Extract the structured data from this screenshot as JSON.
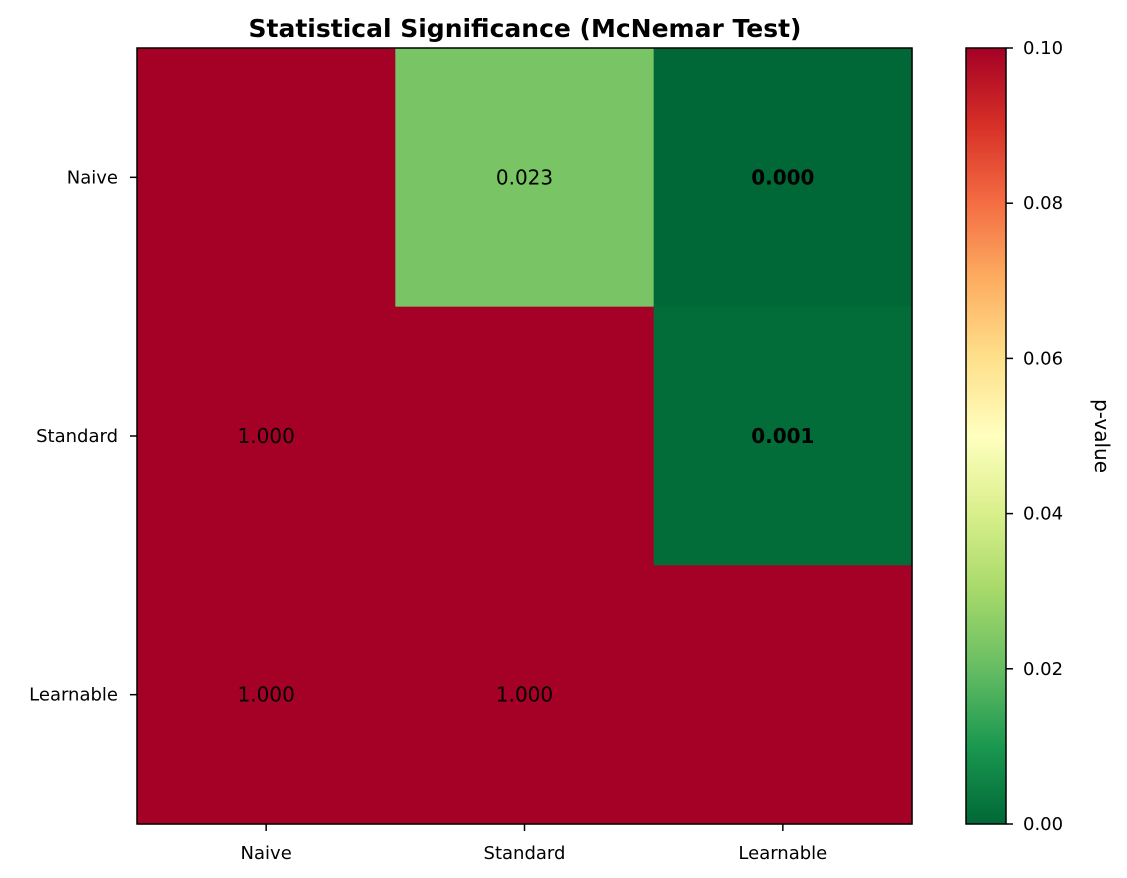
{
  "chart_data": {
    "type": "heatmap",
    "title": "Statistical Significance (McNemar Test)",
    "rows": [
      "Naive",
      "Standard",
      "Learnable"
    ],
    "columns": [
      "Naive",
      "Standard",
      "Learnable"
    ],
    "values": [
      [
        1.0,
        0.023,
        0.0
      ],
      [
        1.0,
        1.0,
        0.001
      ],
      [
        1.0,
        1.0,
        1.0
      ]
    ],
    "cell_labels": [
      [
        "",
        "0.023",
        "0.000"
      ],
      [
        "1.000",
        "",
        "0.001"
      ],
      [
        "1.000",
        "1.000",
        ""
      ]
    ],
    "bold_threshold": 0.01,
    "colormap": "RdYlGn_r",
    "vmin": 0.0,
    "vmax": 0.1,
    "colorbar": {
      "label": "p-value",
      "ticks": [
        "0.00",
        "0.02",
        "0.04",
        "0.06",
        "0.08",
        "0.10"
      ]
    },
    "colors": {
      "high": "#a50026",
      "mid": "#ffffbf",
      "low": "#006837"
    }
  }
}
